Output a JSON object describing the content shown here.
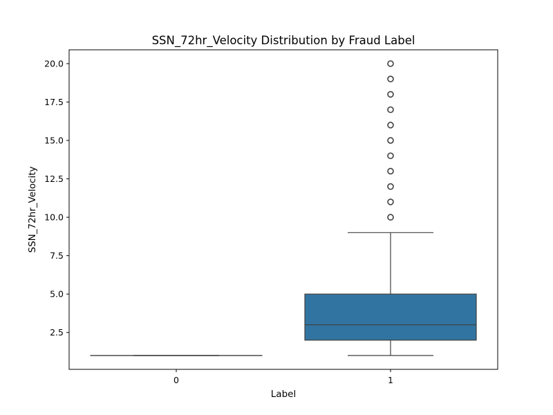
{
  "chart_data": {
    "type": "box",
    "title": "SSN_72hr_Velocity Distribution by Fraud Label",
    "xlabel": "Label",
    "ylabel": "SSN_72hr_Velocity",
    "ylim": [
      0.1,
      20.9
    ],
    "yticks": [
      2.5,
      5.0,
      7.5,
      10.0,
      12.5,
      15.0,
      17.5,
      20.0
    ],
    "ytick_labels": [
      "2.5",
      "5.0",
      "7.5",
      "10.0",
      "12.5",
      "15.0",
      "17.5",
      "20.0"
    ],
    "categories": [
      "0",
      "1"
    ],
    "grid": false,
    "box_color": "#3274a1",
    "line_color": "#3f3f3f",
    "boxes": [
      {
        "category": "0",
        "whisker_low": 1,
        "q1": 1,
        "median": 1,
        "q3": 1,
        "whisker_high": 1,
        "outliers": []
      },
      {
        "category": "1",
        "whisker_low": 1,
        "q1": 2,
        "median": 3,
        "q3": 5,
        "whisker_high": 9,
        "outliers": [
          10,
          11,
          12,
          13,
          14,
          15,
          16,
          17,
          18,
          19,
          20
        ]
      }
    ]
  }
}
